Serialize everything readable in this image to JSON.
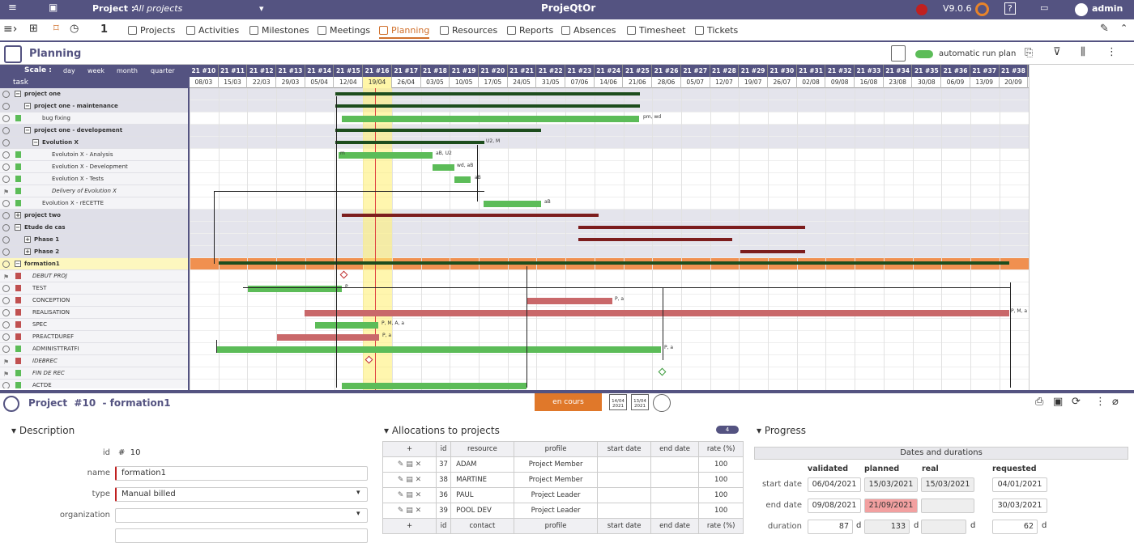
{
  "app": {
    "title": "ProjeQtOr",
    "version": "V9.0.6",
    "user": "admin",
    "project_label": "Project :",
    "project_value": "All projects"
  },
  "menu": {
    "counter": "1",
    "items": [
      {
        "label": "Projects"
      },
      {
        "label": "Activities"
      },
      {
        "label": "Milestones"
      },
      {
        "label": "Meetings"
      },
      {
        "label": "Planning"
      },
      {
        "label": "Resources"
      },
      {
        "label": "Reports"
      },
      {
        "label": "Absences"
      },
      {
        "label": "Timesheet"
      },
      {
        "label": "Tickets"
      }
    ]
  },
  "planning": {
    "title": "Planning",
    "auto_run": "automatic run plan",
    "scale_label": "Scale :",
    "scales": [
      "day",
      "week",
      "month",
      "quarter"
    ],
    "task_header": "task"
  },
  "weeks": [
    "21 #10",
    "21 #11",
    "21 #12",
    "21 #13",
    "21 #14",
    "21 #15",
    "21 #16",
    "21 #17",
    "21 #18",
    "21 #19",
    "21 #20",
    "21 #21",
    "21 #22",
    "21 #23",
    "21 #24",
    "21 #25",
    "21 #26",
    "21 #27",
    "21 #28",
    "21 #29",
    "21 #30",
    "21 #31",
    "21 #32",
    "21 #33",
    "21 #34",
    "21 #35",
    "21 #36",
    "21 #37",
    "21 #38"
  ],
  "dates": [
    "08/03",
    "15/03",
    "22/03",
    "29/03",
    "05/04",
    "12/04",
    "19/04",
    "26/04",
    "03/05",
    "10/05",
    "17/05",
    "24/05",
    "31/05",
    "07/06",
    "14/06",
    "21/06",
    "28/06",
    "05/07",
    "12/07",
    "19/07",
    "26/07",
    "02/08",
    "09/08",
    "16/08",
    "23/08",
    "30/08",
    "06/09",
    "13/09",
    "20/09"
  ],
  "tasks": [
    {
      "label": "project one"
    },
    {
      "label": "project one - maintenance"
    },
    {
      "label": "bug fixing"
    },
    {
      "label": "project one - developement"
    },
    {
      "label": "Evolution X"
    },
    {
      "label": "Evolutoin X - Analysis"
    },
    {
      "label": "Evolution X - Development"
    },
    {
      "label": "Evolution X - Tests"
    },
    {
      "label": "Delivery of Evolution X"
    },
    {
      "label": "Evolution X - rECETTE"
    },
    {
      "label": "project two"
    },
    {
      "label": "Etude de cas"
    },
    {
      "label": "Phase 1"
    },
    {
      "label": "Phase 2"
    },
    {
      "label": "formation1"
    },
    {
      "label": "DEBUT PROJ"
    },
    {
      "label": "TEST"
    },
    {
      "label": "CONCEPTION"
    },
    {
      "label": "REALISATION"
    },
    {
      "label": "SPEC"
    },
    {
      "label": "PREACTDUREF"
    },
    {
      "label": "ADMINISTTRATFI"
    },
    {
      "label": "IDEBREC"
    },
    {
      "label": "FIN DE REC"
    },
    {
      "label": "ACTDE"
    }
  ],
  "bar_labels": {
    "bugfix": "pm, wd",
    "evo": "U2, M",
    "analysis": "aB, U2",
    "analysis_start": "m",
    "dev": "wd, aB",
    "tests": "aB",
    "recette": "aB",
    "test": "P",
    "conception": "P, a",
    "realisation": "P, M, a",
    "spec": "P, M, A, a",
    "preact": "P, a",
    "admin": "P, a"
  },
  "detail": {
    "title": "Project  #10  - formation1",
    "status": "en cours",
    "date1": "14/04 2021",
    "date2": "13/04 2021"
  },
  "description": {
    "header": "Description",
    "id_label": "id",
    "id_value": "#  10",
    "name_label": "name",
    "name_value": "formation1",
    "type_label": "type",
    "type_value": "Manual billed",
    "org_label": "organization"
  },
  "allocations": {
    "header": "Allocations to projects",
    "count": "4",
    "cols": [
      "id",
      "resource",
      "profile",
      "start date",
      "end date",
      "rate (%)"
    ],
    "rows": [
      {
        "id": "37",
        "resource": "ADAM",
        "profile": "Project Member",
        "rate": "100"
      },
      {
        "id": "38",
        "resource": "MARTINE",
        "profile": "Project Member",
        "rate": "100"
      },
      {
        "id": "36",
        "resource": "PAUL",
        "profile": "Project Leader",
        "rate": "100"
      },
      {
        "id": "39",
        "resource": "POOL DEV",
        "profile": "Project Leader",
        "rate": "100"
      }
    ],
    "cols2": [
      "id",
      "contact",
      "profile",
      "start date",
      "end date",
      "rate (%)"
    ]
  },
  "progress": {
    "header": "Progress",
    "sub": "Dates and durations",
    "cols": [
      "validated",
      "planned",
      "real",
      "requested"
    ],
    "start_label": "start date",
    "start": [
      "06/04/2021",
      "15/03/2021",
      "15/03/2021",
      "04/01/2021"
    ],
    "end_label": "end date",
    "end": [
      "09/08/2021",
      "21/09/2021",
      "",
      "30/03/2021"
    ],
    "dur_label": "duration",
    "dur": [
      "87",
      "133",
      "",
      "62"
    ],
    "unit": "d"
  },
  "colors": {
    "header": "#545381",
    "accent": "#d0702c",
    "green": "#5cbc58",
    "dark_red": "#7c1d1d",
    "today": "#fff6a8"
  }
}
